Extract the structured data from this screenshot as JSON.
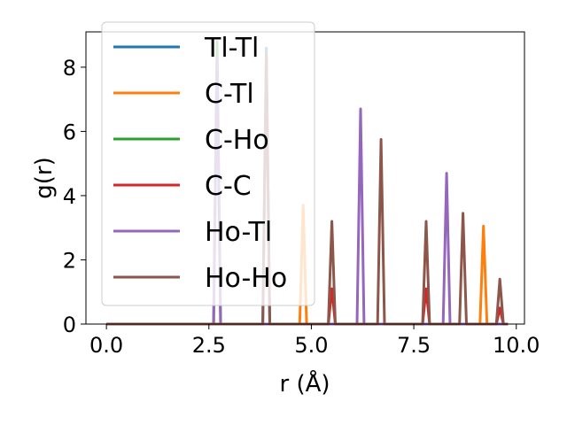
{
  "chart_data": {
    "type": "line",
    "xlabel": "r (Å)",
    "ylabel": "g(r)",
    "xlim": [
      -0.5,
      10.2
    ],
    "ylim": [
      0,
      9.1
    ],
    "xticks": [
      0.0,
      2.5,
      5.0,
      7.5,
      10.0
    ],
    "xtick_labels": [
      "0.0",
      "2.5",
      "5.0",
      "7.5",
      "10.0"
    ],
    "yticks": [
      0,
      2,
      4,
      6,
      8
    ],
    "ytick_labels": [
      "0",
      "2",
      "4",
      "6",
      "8"
    ],
    "grid": false,
    "legend_position": "top-left",
    "series": [
      {
        "name": "Tl-Tl",
        "color": "#1f77b4",
        "peaks": [
          [
            3.9,
            8.6
          ]
        ]
      },
      {
        "name": "C-Tl",
        "color": "#ff7f0e",
        "peaks": [
          [
            4.8,
            3.7
          ],
          [
            9.2,
            3.05
          ]
        ]
      },
      {
        "name": "C-Ho",
        "color": "#2ca02c",
        "peaks": [
          [
            2.7,
            8.8
          ]
        ]
      },
      {
        "name": "C-C",
        "color": "#d62728",
        "peaks": [
          [
            5.5,
            1.1
          ],
          [
            7.8,
            1.1
          ],
          [
            9.6,
            0.5
          ]
        ]
      },
      {
        "name": "Ho-Tl",
        "color": "#9467bd",
        "peaks": [
          [
            2.7,
            8.3
          ],
          [
            6.2,
            6.7
          ],
          [
            8.3,
            4.7
          ]
        ]
      },
      {
        "name": "Ho-Ho",
        "color": "#8c564b",
        "peaks": [
          [
            3.9,
            8.4
          ],
          [
            5.5,
            3.2
          ],
          [
            6.7,
            5.75
          ],
          [
            7.8,
            3.2
          ],
          [
            8.7,
            3.45
          ],
          [
            9.6,
            1.4
          ]
        ]
      }
    ]
  }
}
